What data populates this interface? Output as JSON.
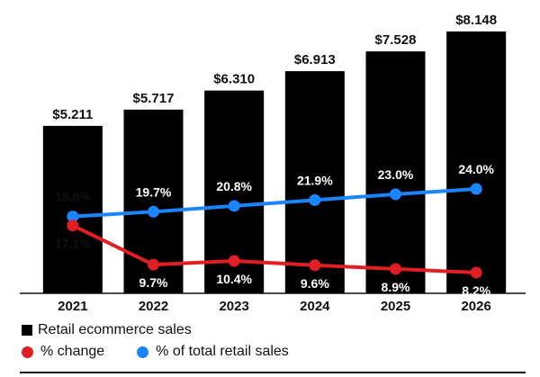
{
  "chart_data": {
    "type": "bar",
    "categories": [
      "2021",
      "2022",
      "2023",
      "2024",
      "2025",
      "2026"
    ],
    "series": [
      {
        "name": "Retail ecommerce sales",
        "type": "bar",
        "values": [
          5.211,
          5.717,
          6.31,
          6.913,
          7.528,
          8.148
        ],
        "labels": [
          "$5.211",
          "$5.717",
          "$6.310",
          "$6.913",
          "$7.528",
          "$8.148"
        ],
        "color": "#000000"
      },
      {
        "name": "% change",
        "type": "line",
        "values": [
          17.1,
          9.7,
          10.4,
          9.6,
          8.9,
          8.2
        ],
        "labels": [
          "17.1%",
          "9.7%",
          "10.4%",
          "9.6%",
          "8.9%",
          "8.2%"
        ],
        "color": "#e01e26"
      },
      {
        "name": "% of total retail sales",
        "type": "line",
        "values": [
          18.8,
          19.7,
          20.8,
          21.9,
          23.0,
          24.0
        ],
        "labels": [
          "18.8%",
          "19.7%",
          "20.8%",
          "21.9%",
          "23.0%",
          "24.0%"
        ],
        "color": "#1a85ff"
      }
    ],
    "bar_ylim": [
      0,
      8.148
    ],
    "grid": false,
    "legend": "bottom-left"
  }
}
